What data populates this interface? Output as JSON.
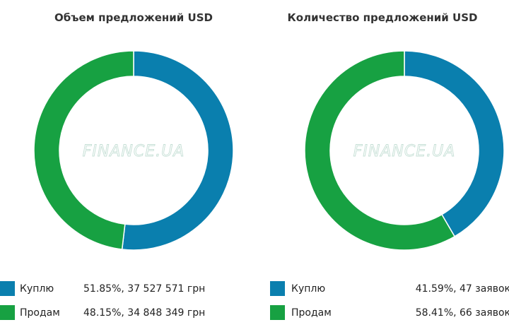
{
  "colors": {
    "buy": "#0a7fae",
    "sell": "#17a142",
    "separator": "#ffffff"
  },
  "watermark": "FINANCE.UA",
  "chart_data": [
    {
      "type": "pie",
      "donut": true,
      "title": "Объем предложений USD",
      "start_angle_deg": 0,
      "legend_position": "bottom",
      "slices": [
        {
          "label": "Куплю",
          "percent": 51.85,
          "value": 37527571,
          "value_text": "51.85%, 37 527 571 грн",
          "color": "#0a7fae"
        },
        {
          "label": "Продам",
          "percent": 48.15,
          "value": 34848349,
          "value_text": "48.15%, 34 848 349 грн",
          "color": "#17a142"
        }
      ]
    },
    {
      "type": "pie",
      "donut": true,
      "title": "Количество предложений USD",
      "start_angle_deg": 0,
      "legend_position": "bottom",
      "slices": [
        {
          "label": "Куплю",
          "percent": 41.59,
          "value": 47,
          "value_text": "41.59%, 47 заявок",
          "color": "#0a7fae"
        },
        {
          "label": "Продам",
          "percent": 58.41,
          "value": 66,
          "value_text": "58.41%, 66 заявок",
          "color": "#17a142"
        }
      ]
    }
  ]
}
